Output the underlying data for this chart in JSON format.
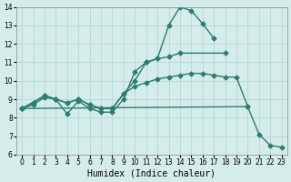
{
  "xlabel": "Humidex (Indice chaleur)",
  "xlim": [
    -0.5,
    23.5
  ],
  "ylim": [
    6,
    14
  ],
  "xticks": [
    0,
    1,
    2,
    3,
    4,
    5,
    6,
    7,
    8,
    9,
    10,
    11,
    12,
    13,
    14,
    15,
    16,
    17,
    18,
    19,
    20,
    21,
    22,
    23
  ],
  "yticks": [
    6,
    7,
    8,
    9,
    10,
    11,
    12,
    13,
    14
  ],
  "bg_color": "#d4ecea",
  "grid_color": "#b0d4d0",
  "line_color": "#2e7d6e",
  "tick_fontsize": 5.5,
  "xlabel_fontsize": 7,
  "markersize": 2.5,
  "linewidth": 1.0,
  "line1_x": [
    0,
    1,
    2,
    3,
    4,
    5,
    6,
    7,
    8,
    9,
    10,
    11,
    12,
    13,
    14,
    15,
    16,
    17
  ],
  "line1_y": [
    8.5,
    8.8,
    9.2,
    9.0,
    8.2,
    8.9,
    8.5,
    8.3,
    8.3,
    9.0,
    10.5,
    11.0,
    11.2,
    13.0,
    14.0,
    13.8,
    13.1,
    12.3
  ],
  "line2_x": [
    0,
    2,
    3,
    4,
    5,
    6,
    7,
    8,
    9,
    10,
    11,
    12,
    13,
    14,
    18
  ],
  "line2_y": [
    8.5,
    9.2,
    9.0,
    8.8,
    9.0,
    8.7,
    8.5,
    8.5,
    9.3,
    10.0,
    11.0,
    11.2,
    11.3,
    11.5,
    11.5
  ],
  "line3_x": [
    0,
    1,
    2,
    3,
    4,
    5,
    6,
    7,
    8,
    9,
    10,
    11,
    12,
    13,
    14,
    15,
    16,
    17,
    18,
    19,
    20
  ],
  "line3_y": [
    8.5,
    8.7,
    9.1,
    9.0,
    8.8,
    9.0,
    8.7,
    8.5,
    8.5,
    9.3,
    9.7,
    9.9,
    10.1,
    10.2,
    10.3,
    10.4,
    10.4,
    10.3,
    10.2,
    10.2,
    8.6
  ],
  "line4_x": [
    0,
    20,
    21,
    22,
    23
  ],
  "line4_y": [
    8.5,
    8.6,
    7.1,
    6.5,
    6.4
  ]
}
